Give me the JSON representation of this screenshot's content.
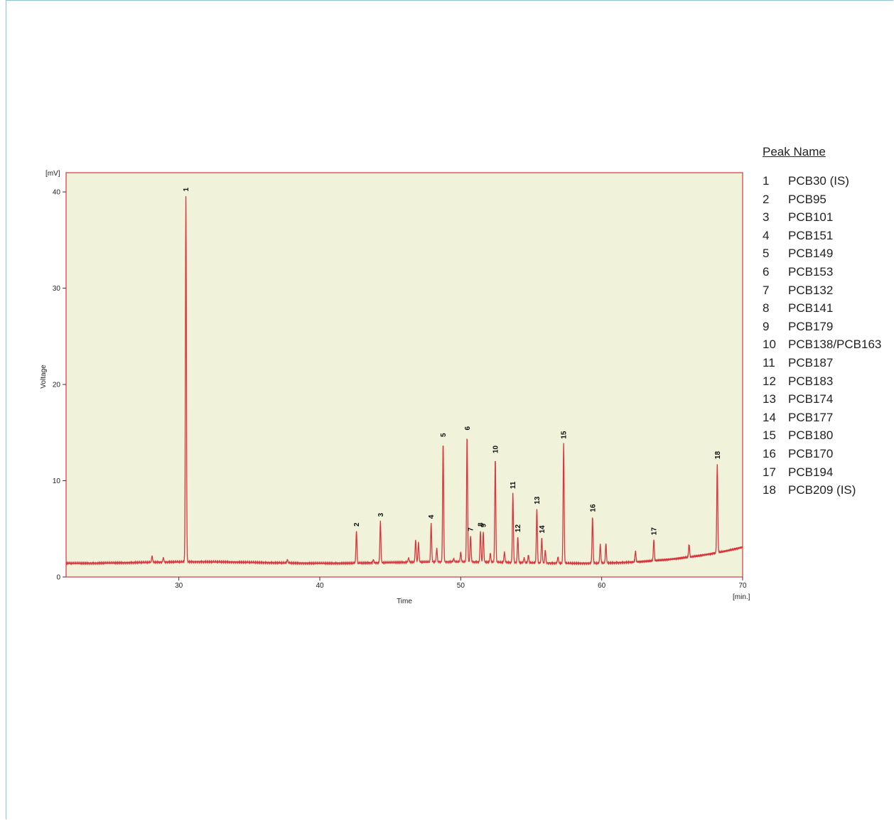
{
  "colors": {
    "plot_background": "#f1f2da",
    "trace": "#d9363e",
    "frame_border": "#8fc3cf"
  },
  "chart_data": {
    "type": "line",
    "title": "",
    "xlabel": "Time",
    "ylabel": "Voltage",
    "x_unit": "[min.]",
    "y_unit": "[mV]",
    "xlim": [
      22,
      70
    ],
    "ylim": [
      0,
      42
    ],
    "x_ticks": [
      30,
      40,
      50,
      60,
      70
    ],
    "y_ticks": [
      0,
      10,
      20,
      30,
      40
    ],
    "grid": false,
    "legend_position": "right",
    "baseline_mV": 1.5,
    "peaks": [
      {
        "label": "1",
        "time": 30.5,
        "height": 39.6
      },
      {
        "label": "2",
        "time": 42.6,
        "height": 4.8
      },
      {
        "label": "3",
        "time": 44.3,
        "height": 5.8
      },
      {
        "label": "4",
        "time": 47.9,
        "height": 5.6
      },
      {
        "label": "5",
        "time": 48.75,
        "height": 14.1
      },
      {
        "label": "6",
        "time": 50.45,
        "height": 14.8
      },
      {
        "label": "7",
        "time": 50.7,
        "height": 4.3
      },
      {
        "label": "8",
        "time": 51.4,
        "height": 4.8
      },
      {
        "label": "9",
        "time": 51.6,
        "height": 4.7
      },
      {
        "label": "10",
        "time": 52.45,
        "height": 12.4
      },
      {
        "label": "11",
        "time": 53.7,
        "height": 8.7
      },
      {
        "label": "12",
        "time": 54.05,
        "height": 4.2
      },
      {
        "label": "13",
        "time": 55.4,
        "height": 7.1
      },
      {
        "label": "14",
        "time": 55.75,
        "height": 4.1
      },
      {
        "label": "15",
        "time": 57.3,
        "height": 13.9
      },
      {
        "label": "16",
        "time": 59.35,
        "height": 6.3
      },
      {
        "label": "17",
        "time": 63.7,
        "height": 3.9
      },
      {
        "label": "18",
        "time": 68.2,
        "height": 11.8
      }
    ],
    "minor_peaks": [
      {
        "time": 28.1,
        "height": 2.2
      },
      {
        "time": 28.9,
        "height": 2.0
      },
      {
        "time": 37.7,
        "height": 1.8
      },
      {
        "time": 43.8,
        "height": 1.8
      },
      {
        "time": 46.3,
        "height": 2.0
      },
      {
        "time": 46.8,
        "height": 3.9
      },
      {
        "time": 47.0,
        "height": 3.6
      },
      {
        "time": 48.3,
        "height": 3.0
      },
      {
        "time": 49.5,
        "height": 1.9
      },
      {
        "time": 50.0,
        "height": 2.6
      },
      {
        "time": 52.1,
        "height": 2.5
      },
      {
        "time": 53.1,
        "height": 2.6
      },
      {
        "time": 54.5,
        "height": 2.0
      },
      {
        "time": 54.8,
        "height": 2.3
      },
      {
        "time": 56.0,
        "height": 2.8
      },
      {
        "time": 56.9,
        "height": 2.1
      },
      {
        "time": 59.9,
        "height": 3.4
      },
      {
        "time": 60.3,
        "height": 3.5
      },
      {
        "time": 62.4,
        "height": 2.7
      },
      {
        "time": 66.2,
        "height": 3.4
      }
    ]
  },
  "legend": {
    "title": "Peak Name",
    "items": [
      {
        "num": "1",
        "name": "PCB30 (IS)"
      },
      {
        "num": "2",
        "name": "PCB95"
      },
      {
        "num": "3",
        "name": "PCB101"
      },
      {
        "num": "4",
        "name": "PCB151"
      },
      {
        "num": "5",
        "name": "PCB149"
      },
      {
        "num": "6",
        "name": "PCB153"
      },
      {
        "num": "7",
        "name": "PCB132"
      },
      {
        "num": "8",
        "name": "PCB141"
      },
      {
        "num": "9",
        "name": "PCB179"
      },
      {
        "num": "10",
        "name": "PCB138/PCB163"
      },
      {
        "num": "11",
        "name": "PCB187"
      },
      {
        "num": "12",
        "name": "PCB183"
      },
      {
        "num": "13",
        "name": "PCB174"
      },
      {
        "num": "14",
        "name": "PCB177"
      },
      {
        "num": "15",
        "name": "PCB180"
      },
      {
        "num": "16",
        "name": "PCB170"
      },
      {
        "num": "17",
        "name": "PCB194"
      },
      {
        "num": "18",
        "name": "PCB209 (IS)"
      }
    ]
  }
}
